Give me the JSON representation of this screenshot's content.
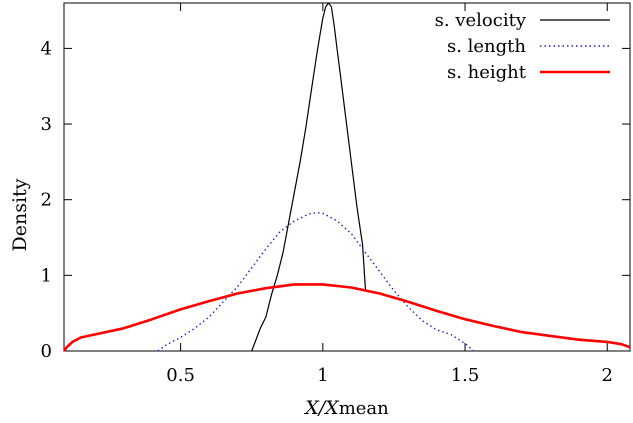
{
  "chart_data": {
    "type": "line",
    "xlabel": "X/Xmean",
    "xlabel_main": "X/X",
    "xlabel_sub": "mean",
    "ylabel": "Density",
    "xlim": [
      0.09,
      2.08
    ],
    "ylim": [
      0,
      4.6
    ],
    "xticks": [
      0.5,
      1,
      1.5,
      2
    ],
    "xtick_labels": [
      "0.5",
      "1",
      "1.5",
      "2"
    ],
    "yticks": [
      0,
      1,
      2,
      3,
      4
    ],
    "ytick_labels": [
      "0",
      "1",
      "2",
      "3",
      "4"
    ],
    "grid": false,
    "legend_position": "top-right",
    "series": [
      {
        "name": "s. velocity",
        "color": "#000000",
        "style": "solid",
        "x": [
          0.75,
          0.76,
          0.78,
          0.8,
          0.82,
          0.84,
          0.86,
          0.88,
          0.9,
          0.92,
          0.94,
          0.96,
          0.98,
          1.0,
          1.01,
          1.02,
          1.03,
          1.04,
          1.05,
          1.06,
          1.08,
          1.1,
          1.12,
          1.14,
          1.15
        ],
        "y": [
          0.0,
          0.1,
          0.3,
          0.45,
          0.75,
          1.0,
          1.3,
          1.7,
          2.1,
          2.5,
          2.95,
          3.45,
          3.95,
          4.4,
          4.55,
          4.6,
          4.55,
          4.3,
          4.0,
          3.7,
          3.1,
          2.5,
          1.9,
          1.4,
          0.8
        ]
      },
      {
        "name": "s. length",
        "color": "#2020cc",
        "style": "dotted",
        "x": [
          0.42,
          0.45,
          0.5,
          0.55,
          0.6,
          0.65,
          0.7,
          0.75,
          0.8,
          0.85,
          0.9,
          0.95,
          0.98,
          1.0,
          1.05,
          1.1,
          1.15,
          1.2,
          1.25,
          1.3,
          1.35,
          1.4,
          1.45,
          1.5,
          1.53
        ],
        "y": [
          0.0,
          0.08,
          0.18,
          0.3,
          0.45,
          0.65,
          0.85,
          1.1,
          1.35,
          1.58,
          1.72,
          1.81,
          1.83,
          1.82,
          1.72,
          1.55,
          1.3,
          1.05,
          0.8,
          0.58,
          0.4,
          0.28,
          0.22,
          0.1,
          0.0
        ]
      },
      {
        "name": "s. height",
        "color": "#ff0000",
        "style": "solid",
        "x": [
          0.09,
          0.1,
          0.12,
          0.15,
          0.2,
          0.3,
          0.4,
          0.5,
          0.6,
          0.7,
          0.8,
          0.9,
          1.0,
          1.1,
          1.2,
          1.3,
          1.4,
          1.5,
          1.6,
          1.7,
          1.8,
          1.9,
          2.0,
          2.05,
          2.08
        ],
        "y": [
          0.0,
          0.05,
          0.12,
          0.18,
          0.22,
          0.3,
          0.42,
          0.55,
          0.66,
          0.76,
          0.83,
          0.88,
          0.88,
          0.84,
          0.76,
          0.65,
          0.53,
          0.42,
          0.33,
          0.25,
          0.2,
          0.15,
          0.12,
          0.09,
          0.05
        ]
      }
    ]
  }
}
